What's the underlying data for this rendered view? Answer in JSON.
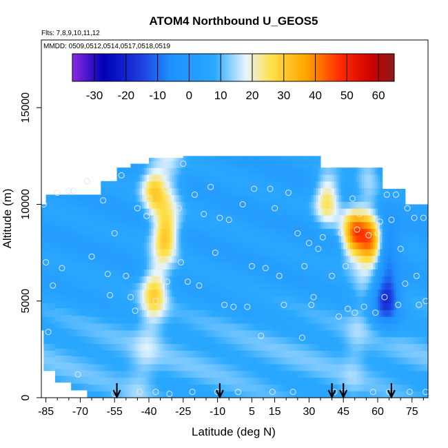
{
  "chart_data": {
    "type": "heatmap",
    "title": "ATOM4 Northbound U_GEOS5",
    "subtitle_flights": "Flts: 7,8,9,10,11,12",
    "subtitle_dates": "MMDD: 0509,0512,0514,0517,0518,0519",
    "xlabel": "Latitude (deg N)",
    "ylabel": "Altitude (m)",
    "xlim": [
      -87,
      82
    ],
    "ylim": [
      0,
      18500
    ],
    "x_ticks": [
      -85,
      -70,
      -55,
      -40,
      -25,
      -10,
      5,
      15,
      30,
      45,
      60,
      75
    ],
    "x_minor_ticks": [
      -80,
      -75,
      -65,
      -60,
      -50,
      -45,
      -35,
      -30,
      -20,
      -15,
      -5,
      0,
      10,
      20,
      25,
      35,
      40,
      50,
      55,
      65,
      70,
      80
    ],
    "y_ticks": [
      0,
      5000,
      10000,
      15000
    ],
    "colorbar": {
      "vmin": -37,
      "vmax": 65,
      "ticks": [
        -30,
        -20,
        -10,
        0,
        10,
        20,
        30,
        40,
        50,
        60
      ],
      "stops": [
        {
          "v": -37,
          "c": "#8a2be2"
        },
        {
          "v": -27,
          "c": "#0000b4"
        },
        {
          "v": -15,
          "c": "#1f3fe0"
        },
        {
          "v": -6,
          "c": "#1e90ff"
        },
        {
          "v": 8,
          "c": "#2aa8ff"
        },
        {
          "v": 18,
          "c": "#e6f4ff"
        },
        {
          "v": 26,
          "c": "#ffe14a"
        },
        {
          "v": 37,
          "c": "#ffa500"
        },
        {
          "v": 48,
          "c": "#ff2a00"
        },
        {
          "v": 58,
          "c": "#cc0000"
        },
        {
          "v": 65,
          "c": "#8b1a1a"
        }
      ]
    },
    "profile_markers_lat": [
      -54,
      -9,
      40,
      45,
      66
    ],
    "jets": [
      {
        "lat": -38,
        "alt": 10800,
        "speed": 30
      },
      {
        "lat": -33,
        "alt": 8500,
        "speed": 28
      },
      {
        "lat": -38,
        "alt": 5500,
        "speed": 24
      },
      {
        "lat": 38,
        "alt": 10300,
        "speed": 30
      },
      {
        "lat": 50,
        "alt": 8500,
        "speed": 44
      },
      {
        "lat": 59,
        "alt": 8000,
        "speed": 54
      },
      {
        "lat": 62,
        "alt": 8000,
        "speed": -25
      },
      {
        "lat": 64,
        "alt": 5200,
        "speed": -18
      }
    ],
    "samples": [
      [
        -86,
        10000
      ],
      [
        -85,
        7000
      ],
      [
        -84,
        3400
      ],
      [
        -82,
        5800
      ],
      [
        -80,
        10600
      ],
      [
        -78,
        6700
      ],
      [
        -75,
        10700
      ],
      [
        -73,
        10700
      ],
      [
        -71,
        1200
      ],
      [
        -67,
        11200
      ],
      [
        -65,
        7300
      ],
      [
        -60,
        10200
      ],
      [
        -58,
        6400
      ],
      [
        -57,
        5300
      ],
      [
        -55,
        8500
      ],
      [
        -55,
        200
      ],
      [
        -52,
        11500
      ],
      [
        -50,
        6300
      ],
      [
        -48,
        5200
      ],
      [
        -46,
        4500
      ],
      [
        -45,
        9800
      ],
      [
        -44,
        300
      ],
      [
        -42,
        4800
      ],
      [
        -41,
        9400
      ],
      [
        -40,
        10300
      ],
      [
        -37,
        5000
      ],
      [
        -37,
        300
      ],
      [
        -35,
        6800
      ],
      [
        -33,
        10800
      ],
      [
        -32,
        6000
      ],
      [
        -31,
        200
      ],
      [
        -27,
        9800
      ],
      [
        -26,
        7000
      ],
      [
        -25,
        12100
      ],
      [
        -23,
        6000
      ],
      [
        -21,
        300
      ],
      [
        -20,
        10500
      ],
      [
        -18,
        5800
      ],
      [
        -16,
        9500
      ],
      [
        -13,
        10900
      ],
      [
        -11,
        7500
      ],
      [
        -10,
        300
      ],
      [
        -9,
        9300
      ],
      [
        -7,
        4800
      ],
      [
        -5,
        9200
      ],
      [
        -3,
        4700
      ],
      [
        -1,
        300
      ],
      [
        1,
        10000
      ],
      [
        3,
        4700
      ],
      [
        5,
        6800
      ],
      [
        6,
        10800
      ],
      [
        9,
        3200
      ],
      [
        11,
        6700
      ],
      [
        13,
        10800
      ],
      [
        14,
        300
      ],
      [
        15,
        9800
      ],
      [
        17,
        6300
      ],
      [
        19,
        4800
      ],
      [
        21,
        10600
      ],
      [
        23,
        300
      ],
      [
        25,
        8500
      ],
      [
        27,
        3100
      ],
      [
        28,
        6800
      ],
      [
        30,
        8000
      ],
      [
        31,
        4800
      ],
      [
        32,
        5200
      ],
      [
        34,
        7700
      ],
      [
        36,
        8300
      ],
      [
        38,
        10800
      ],
      [
        40,
        6300
      ],
      [
        41,
        300
      ],
      [
        43,
        4200
      ],
      [
        44,
        8500
      ],
      [
        45,
        300
      ],
      [
        46,
        6800
      ],
      [
        47,
        4600
      ],
      [
        49,
        10300
      ],
      [
        50,
        4400
      ],
      [
        51,
        8700
      ],
      [
        52,
        9500
      ],
      [
        54,
        4700
      ],
      [
        56,
        8400
      ],
      [
        58,
        300
      ],
      [
        59,
        4400
      ],
      [
        60,
        8500
      ],
      [
        61,
        9100
      ],
      [
        63,
        5200
      ],
      [
        64,
        10500
      ],
      [
        65,
        300
      ],
      [
        66,
        9200
      ],
      [
        68,
        10500
      ],
      [
        69,
        4800
      ],
      [
        70,
        7700
      ],
      [
        72,
        5900
      ],
      [
        73,
        9800
      ],
      [
        74,
        300
      ],
      [
        76,
        9300
      ],
      [
        77,
        6300
      ],
      [
        78,
        4800
      ],
      [
        80,
        9300
      ],
      [
        81,
        5000
      ],
      [
        81,
        300
      ]
    ]
  }
}
